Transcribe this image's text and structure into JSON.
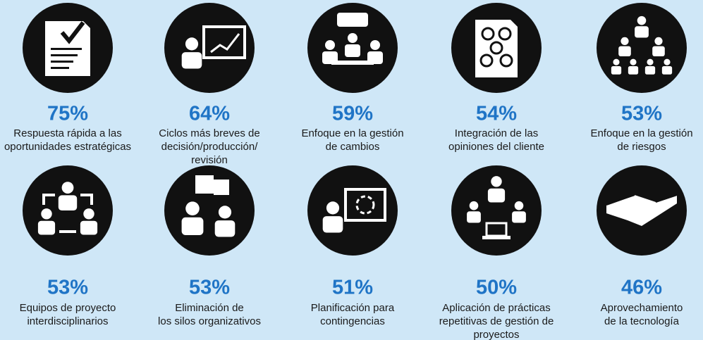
{
  "items": [
    {
      "value": "75%",
      "label_lines": [
        "Respuesta rápida a las",
        "oportunidades estratégicas"
      ]
    },
    {
      "value": "64%",
      "label_lines": [
        "Ciclos más breves de",
        "decisión/producción/",
        "revisión"
      ]
    },
    {
      "value": "59%",
      "label_lines": [
        "Enfoque en la gestión",
        "de cambios"
      ]
    },
    {
      "value": "54%",
      "label_lines": [
        "Integración de las",
        "opiniones del cliente"
      ]
    },
    {
      "value": "53%",
      "label_lines": [
        "Enfoque en la gestión",
        "de riesgos"
      ]
    },
    {
      "value": "53%",
      "label_lines": [
        "Equipos de proyecto",
        "interdisciplinarios"
      ]
    },
    {
      "value": "53%",
      "label_lines": [
        "Eliminación de",
        "los silos organizativos"
      ]
    },
    {
      "value": "51%",
      "label_lines": [
        "Planificación para",
        "contingencias"
      ]
    },
    {
      "value": "50%",
      "label_lines": [
        "Aplicación de prácticas",
        "repetitivas de gestión de",
        "proyectos"
      ]
    },
    {
      "value": "46%",
      "label_lines": [
        "Aprovechamiento",
        "de la tecnología"
      ]
    }
  ]
}
